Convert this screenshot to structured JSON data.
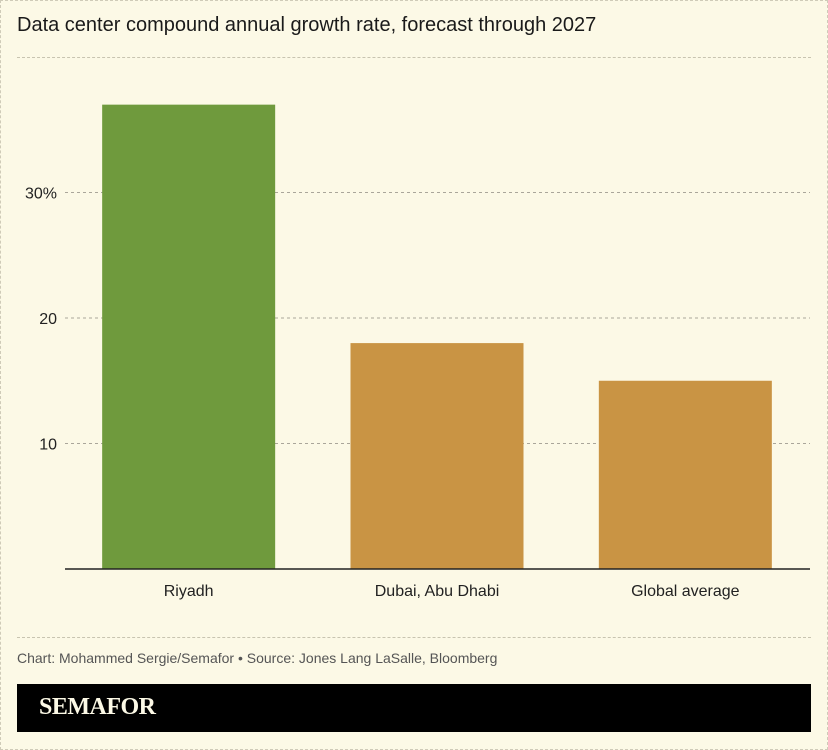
{
  "chart_data": {
    "type": "bar",
    "title": "Data center compound annual growth rate, forecast through 2027",
    "categories": [
      "Riyadh",
      "Dubai, Abu Dhabi",
      "Global average"
    ],
    "values": [
      37,
      18,
      15
    ],
    "colors": [
      "#6f9a3d",
      "#c99444",
      "#c99444"
    ],
    "yticks": [
      10,
      20,
      30
    ],
    "ytick_labels": [
      "10",
      "20",
      "30%"
    ],
    "ylim": [
      0,
      40
    ],
    "grid": true,
    "xlabel": "",
    "ylabel": ""
  },
  "credit": "Chart: Mohammed Sergie/Semafor • Source: Jones Lang LaSalle, Bloomberg",
  "brand": "SEMAFOR"
}
